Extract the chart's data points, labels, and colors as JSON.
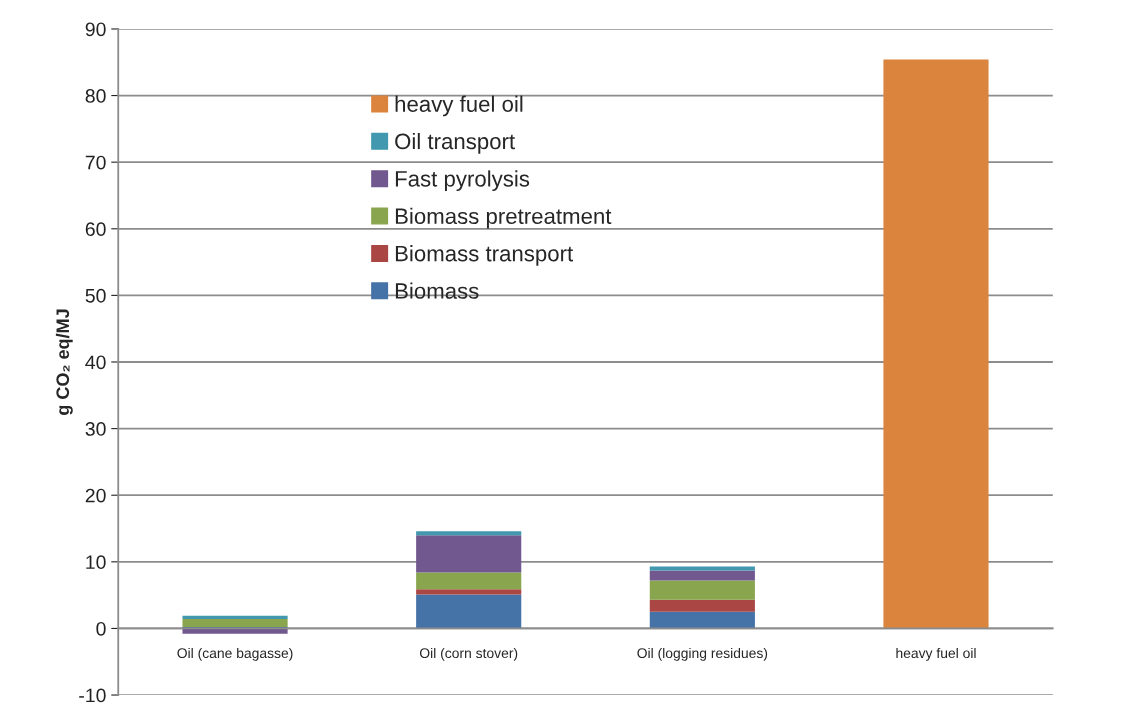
{
  "chart_data": {
    "type": "bar",
    "stacked": true,
    "ylabel": "g CO₂ eq/MJ",
    "categories": [
      "Oil (cane bagasse)",
      "Oil (corn stover)",
      "Oil (logging residues)",
      "heavy fuel oil"
    ],
    "series": [
      {
        "name": "Biomass",
        "color": "#4572a7",
        "values": [
          0.2,
          5.1,
          2.5,
          null
        ]
      },
      {
        "name": "Biomass transport",
        "color": "#aa4643",
        "values": [
          0.0,
          0.8,
          1.8,
          null
        ]
      },
      {
        "name": "Biomass pretreatment",
        "color": "#89a54e",
        "values": [
          1.2,
          2.5,
          2.9,
          null
        ]
      },
      {
        "name": "Fast pyrolysis",
        "color": "#71588f",
        "values": [
          -0.8,
          5.6,
          1.5,
          null
        ]
      },
      {
        "name": "Oil transport",
        "color": "#4198af",
        "values": [
          0.5,
          0.6,
          0.6,
          null
        ]
      },
      {
        "name": "heavy fuel oil",
        "color": "#db843d",
        "values": [
          null,
          null,
          null,
          85.4
        ]
      }
    ],
    "ylim": [
      -10,
      90
    ],
    "yticks": [
      -10,
      0,
      10,
      20,
      30,
      40,
      50,
      60,
      70,
      80,
      90
    ],
    "grid": "y",
    "legend": "top"
  }
}
